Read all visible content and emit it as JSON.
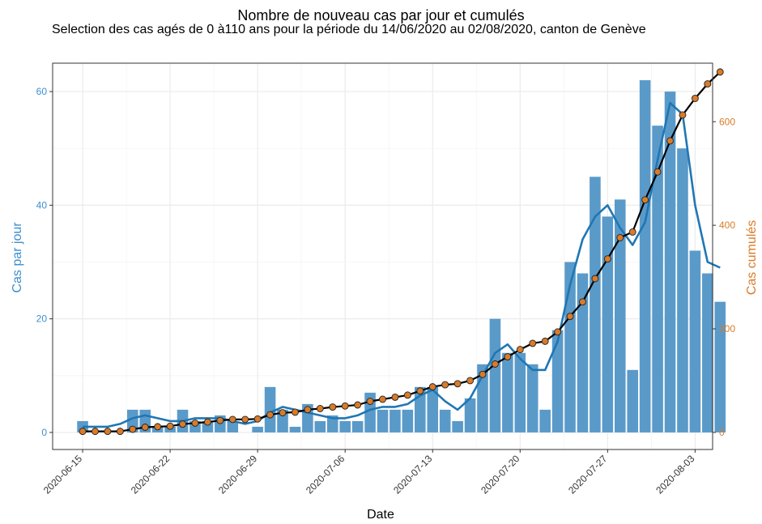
{
  "chart_data": {
    "type": "bar+line",
    "title": "Nombre de nouveau cas par jour et cumulés",
    "subtitle": "Selection des cas agés de 0 à110 ans pour la période du 14/06/2020 au 02/08/2020, canton de Genève",
    "xlabel": "Date",
    "ylabel_left": "Cas par jour",
    "ylabel_right": "Cas cumulés",
    "ylim_left": [
      -3,
      65
    ],
    "ylim_right": [
      -33,
      713
    ],
    "left_ticks": [
      "0",
      "20",
      "40",
      "60"
    ],
    "right_ticks": [
      "0",
      "200",
      "400",
      "600"
    ],
    "x_start": "2020-06-15",
    "x_end": "2020-08-02",
    "x_ticks": [
      "2020-06-15",
      "2020-06-22",
      "2020-06-29",
      "2020-07-06",
      "2020-07-13",
      "2020-07-20",
      "2020-07-27",
      "2020-08-03"
    ],
    "daily_cases": [
      2,
      0,
      0,
      0,
      4,
      4,
      1,
      1,
      4,
      2,
      2,
      3,
      2,
      0,
      1,
      8,
      4,
      1,
      5,
      2,
      3,
      2,
      2,
      7,
      4,
      4,
      4,
      8,
      8,
      4,
      2,
      6,
      12,
      20,
      14,
      14,
      12,
      4,
      18,
      30,
      28,
      45,
      38,
      41,
      11,
      62,
      54,
      60,
      50,
      32,
      28,
      23
    ],
    "smoothed": [
      1,
      1,
      1,
      1.5,
      2.5,
      3,
      2.5,
      2,
      2,
      2.5,
      2.5,
      2.5,
      2,
      1.5,
      2,
      3.5,
      4.5,
      4,
      3.5,
      3,
      2.5,
      2.5,
      3,
      4,
      4.5,
      4.5,
      5,
      6.5,
      7.5,
      5.5,
      4,
      6,
      10,
      14,
      15.5,
      13,
      11,
      11,
      16,
      26,
      34,
      38,
      40,
      36,
      33,
      37,
      48,
      58,
      56,
      40,
      30,
      29
    ],
    "cumulative": [
      2,
      2,
      2,
      2,
      6,
      10,
      11,
      12,
      16,
      18,
      20,
      23,
      25,
      25,
      26,
      34,
      38,
      39,
      44,
      46,
      49,
      51,
      53,
      60,
      64,
      68,
      72,
      80,
      88,
      92,
      94,
      100,
      112,
      132,
      146,
      160,
      172,
      176,
      194,
      224,
      252,
      297,
      335,
      376,
      387,
      449,
      503,
      563,
      613,
      645,
      673,
      696
    ],
    "colors": {
      "bars": "#5a9ac9",
      "smooth_line": "#1f77b4",
      "cumulative_line": "#000000",
      "cumulative_points": "#d97b29",
      "left_axis": "#3a8fd0",
      "right_axis": "#d97b29",
      "grid": "#ebebeb",
      "panel_border": "#333333"
    },
    "grid": true
  }
}
